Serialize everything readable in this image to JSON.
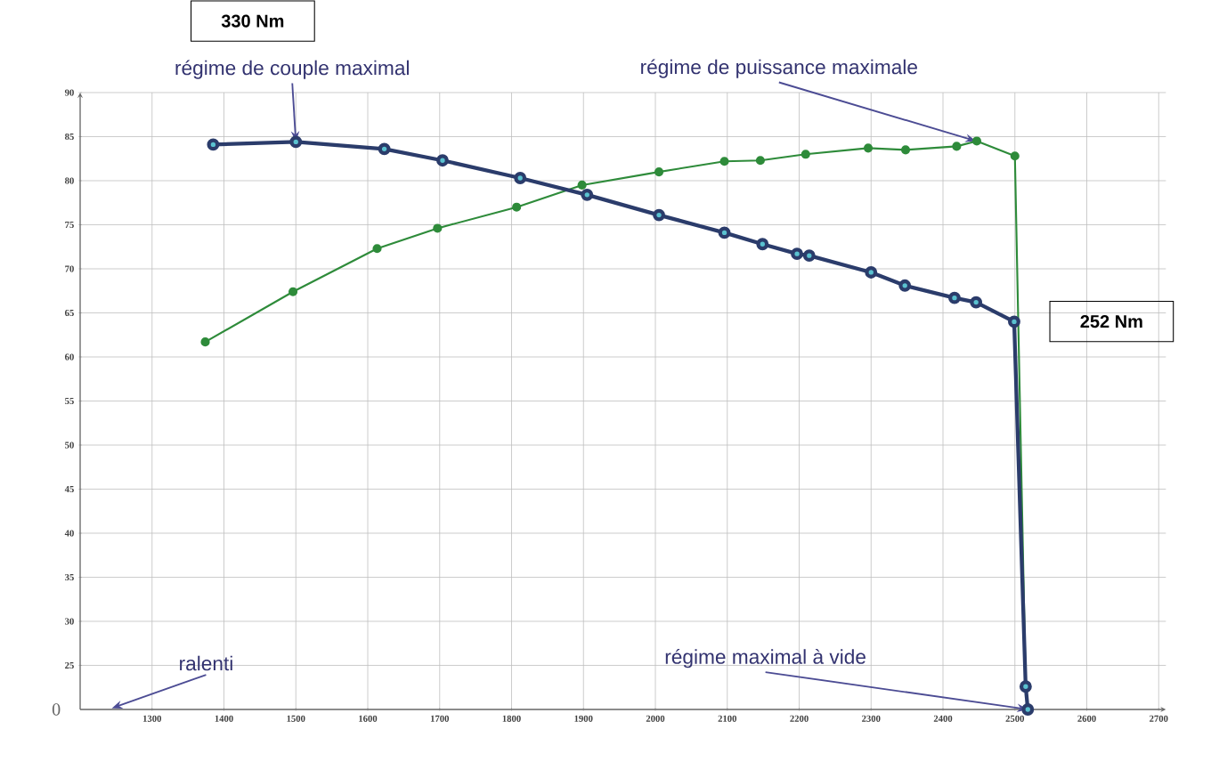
{
  "chart_data": {
    "type": "line",
    "x": [
      1385,
      1500,
      1623,
      1704,
      1812,
      1905,
      2005,
      2096,
      2149,
      2197,
      2214,
      2300,
      2347,
      2416,
      2446,
      2499,
      2515,
      2518
    ],
    "series": [
      {
        "color": "#2b3c6b",
        "values": [
          84.1,
          84.4,
          83.6,
          82.3,
          80.3,
          78.4,
          76.1,
          74.1,
          72.8,
          71.7,
          71.5,
          69.6,
          68.1,
          66.7,
          66.2,
          64.0,
          22.6,
          20.0
        ]
      },
      {
        "color": "#2e8b3a",
        "x": [
          1374,
          1496,
          1613,
          1697,
          1807,
          1898,
          2005,
          2096,
          2146,
          2209,
          2296,
          2348,
          2419,
          2447,
          2500,
          2515
        ],
        "values": [
          61.7,
          67.4,
          72.3,
          74.6,
          77.0,
          79.5,
          81.0,
          82.2,
          82.3,
          83.0,
          83.7,
          83.5,
          83.9,
          84.5,
          82.8,
          22.6
        ]
      }
    ],
    "xlim": [
      1200,
      2710
    ],
    "ylim": [
      20,
      90
    ],
    "xticks": [
      1300,
      1400,
      1500,
      1600,
      1700,
      1800,
      1900,
      2000,
      2100,
      2200,
      2300,
      2400,
      2500,
      2600,
      2700
    ],
    "yticks": [
      90,
      85,
      80,
      75,
      70,
      65,
      60,
      55,
      50,
      45,
      40,
      35,
      30,
      25
    ],
    "grid": true,
    "marker": "circle",
    "annotations": [
      "330 Nm",
      "252 Nm",
      {
        "text": "régime de couple maximal",
        "x": 1500,
        "y": 84.4
      },
      {
        "text": "régime de puissance maximale",
        "x": 2446,
        "y": 84.5
      },
      "ralenti",
      {
        "text": "régime maximal à vide",
        "x": 2518,
        "y": 20.0
      },
      "0"
    ]
  }
}
